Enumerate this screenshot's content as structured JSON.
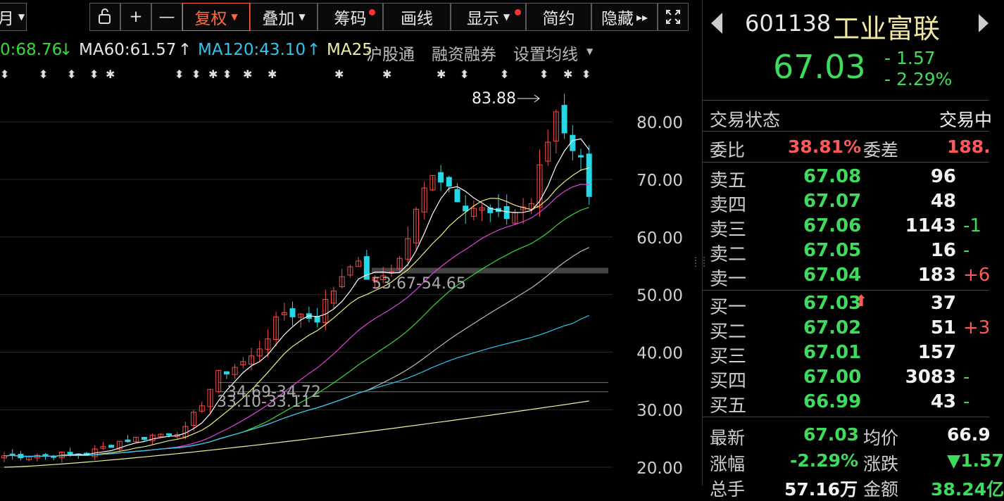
{
  "toolbar": {
    "period_label": "月",
    "restore_icon": "restore-icon",
    "zoom_in": "+",
    "zoom_out": "—",
    "fuquan": "复权",
    "diejia": "叠加",
    "chouma": "筹码",
    "huaxian": "画线",
    "xianshi": "显示",
    "jianyue": "简约",
    "yincang": "隐藏",
    "expand_icon": "fullscreen-icon"
  },
  "ma_row": {
    "ma_prefix_value": "0:68.76",
    "ma_prefix_arrow": "↓",
    "ma60": "MA60:61.57",
    "ma60_arrow": "↑",
    "ma120": "MA120:43.10",
    "ma120_arrow": "↑",
    "ma250": "MA25",
    "hugutong": "沪股通",
    "rongzi": "融资融券",
    "shezhi": "设置均线"
  },
  "chart": {
    "y_ticks": [
      "80.00",
      "70.00",
      "60.00",
      "50.00",
      "40.00",
      "30.00",
      "20.00"
    ],
    "high_label": "83.88",
    "annotations": [
      "53.67-54.65",
      "34.69-34.72",
      "33.10-33.11"
    ],
    "colors": {
      "up": "#ff4a4a",
      "down": "#25d8e6",
      "ma5": "#ffffff",
      "ma10": "#f2ee7a",
      "ma20": "#e040e0",
      "ma60": "#33dd33",
      "ma120": "#bbbbbb",
      "ma250": "#2ec7ef",
      "ma_long": "#f0f0a0"
    }
  },
  "quote": {
    "code": "601138",
    "name": "工业富联",
    "price": "67.03",
    "change": "- 1.57",
    "change_pct": "- 2.29%"
  },
  "status": {
    "label": "交易状态",
    "value": "交易中",
    "weibi_label": "委比",
    "weibi_value": "38.81%",
    "weicha_label": "委差",
    "weicha_value": "188."
  },
  "asks": [
    {
      "name": "卖五",
      "price": "67.08",
      "vol": "96",
      "chg": ""
    },
    {
      "name": "卖四",
      "price": "67.07",
      "vol": "48",
      "chg": ""
    },
    {
      "name": "卖三",
      "price": "67.06",
      "vol": "1143",
      "chg": "-1"
    },
    {
      "name": "卖二",
      "price": "67.05",
      "vol": "16",
      "chg": "-"
    },
    {
      "name": "卖一",
      "price": "67.04",
      "vol": "183",
      "chg": "+6"
    }
  ],
  "bids": [
    {
      "name": "买一",
      "price": "67.03",
      "vol": "37",
      "chg": ""
    },
    {
      "name": "买二",
      "price": "67.02",
      "vol": "51",
      "chg": "+3"
    },
    {
      "name": "买三",
      "price": "67.01",
      "vol": "157",
      "chg": ""
    },
    {
      "name": "买四",
      "price": "67.00",
      "vol": "3083",
      "chg": "-"
    },
    {
      "name": "买五",
      "price": "66.99",
      "vol": "43",
      "chg": "-"
    }
  ],
  "bid_arrow": "⬆",
  "stats": {
    "zuixin_label": "最新",
    "zuixin_value": "67.03",
    "junjia_label": "均价",
    "junjia_value": "66.9",
    "zhangfu_label": "涨幅",
    "zhangfu_value": "-2.29%",
    "zhangdie_label": "涨跌",
    "zhangdie_value": "▼1.57",
    "zongshou_label": "总手",
    "zongshou_value": "57.16万",
    "jine_label": "金额",
    "jine_value": "38.24亿"
  }
}
